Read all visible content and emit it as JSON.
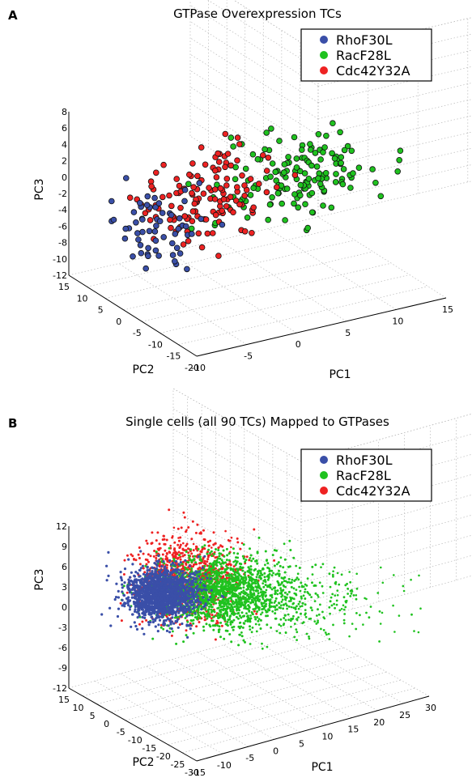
{
  "chart_data": [
    {
      "type": "scatter",
      "panel_label": "A",
      "title": "GTPase Overexpression TCs",
      "xlabel": "PC1",
      "ylabel": "PC2",
      "zlabel": "PC3",
      "x_ticks": [
        "-10",
        "-5",
        "0",
        "5",
        "10",
        "15"
      ],
      "y_ticks": [
        "15",
        "10",
        "5",
        "0",
        "-5",
        "-10",
        "-15",
        "-20"
      ],
      "z_ticks": [
        "8",
        "6",
        "4",
        "2",
        "0",
        "-2",
        "-4",
        "-6",
        "-8",
        "-10",
        "-12"
      ],
      "xlim": [
        -10,
        15
      ],
      "ylim": [
        -20,
        15
      ],
      "zlim": [
        -12,
        8
      ],
      "marker": "circle-outlined",
      "legend_position": "top-right",
      "series": [
        {
          "name": "RhoF30L",
          "color": "#3a4fa8",
          "count": 60,
          "center": {
            "pc1": -6,
            "pc2": 2,
            "pc3": -4
          }
        },
        {
          "name": "RacF28L",
          "color": "#1fc21f",
          "count": 150,
          "center": {
            "pc1": 6,
            "pc2": -4,
            "pc3": 1
          }
        },
        {
          "name": "Cdc42Y32A",
          "color": "#ee2222",
          "count": 130,
          "center": {
            "pc1": -1,
            "pc2": 1,
            "pc3": -1
          }
        }
      ]
    },
    {
      "type": "scatter",
      "panel_label": "B",
      "title": "Single cells (all 90 TCs) Mapped to GTPases",
      "xlabel": "PC1",
      "ylabel": "PC2",
      "zlabel": "PC3",
      "x_ticks": [
        "-15",
        "-10",
        "-5",
        "0",
        "5",
        "10",
        "15",
        "20",
        "25",
        "30"
      ],
      "y_ticks": [
        "15",
        "10",
        "5",
        "0",
        "-5",
        "-10",
        "-15",
        "-20",
        "-25",
        "-30"
      ],
      "z_ticks": [
        "12",
        "9",
        "6",
        "3",
        "0",
        "-3",
        "-6",
        "-9",
        "-12"
      ],
      "xlim": [
        -15,
        30
      ],
      "ylim": [
        -30,
        15
      ],
      "zlim": [
        -12,
        12
      ],
      "marker": "dot",
      "legend_position": "top-right",
      "series": [
        {
          "name": "RhoF30L",
          "color": "#3a4fa8"
        },
        {
          "name": "RacF28L",
          "color": "#1fc21f"
        },
        {
          "name": "Cdc42Y32A",
          "color": "#ee2222"
        }
      ]
    }
  ]
}
